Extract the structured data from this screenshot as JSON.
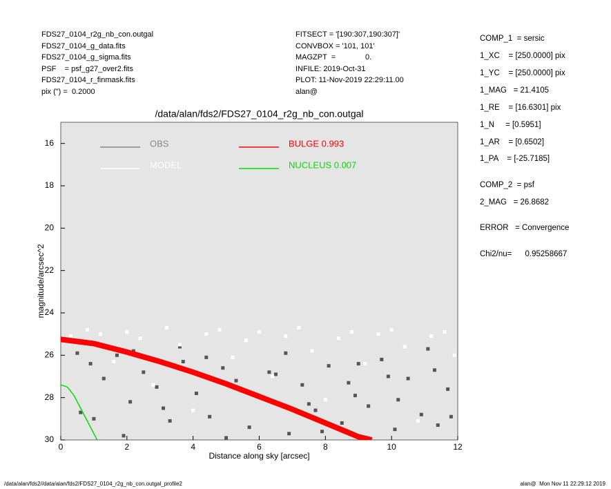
{
  "header_left": [
    "FDS27_0104_r2g_nb_con.outgal",
    "FDS27_0104_g_data.fits",
    "FDS27_0104_g_sigma.fits",
    "PSF    = psf_g27_over2.fits",
    "FDS27_0104_r_finmask.fits",
    "pix (\") =  0.2000"
  ],
  "header_middle": [
    "FITSECT = '[190:307,190:307]'",
    "CONVBOX = '101, 101'",
    "MAGZPT  =              0.",
    "INFILE: 2019-Oct-31",
    "PLOT: 11-Nov-2019 22:29:11.00",
    "alan@"
  ],
  "parameters": [
    "COMP_1  = sersic",
    "1_XC    = [250.0000] pix",
    "1_YC    = [250.0000] pix",
    "1_MAG   = 21.4105",
    "1_RE    = [16.6301] pix",
    "1_N     = [0.5951]",
    "1_AR    = [0.6502]",
    "1_PA    = [-25.7185]",
    "COMP_2  = psf",
    "2_MAG   = 26.8682",
    "ERROR   = Convergence",
    "Chi2/nu=      0.95258667"
  ],
  "footer_left": "/data/alan/fds2//data/alan/fds2/FDS27_0104_r2g_nb_con.outgal_profile2",
  "footer_right": "alan@  Mon Nov 11 22:29:12 2019",
  "chart_data": {
    "type": "scatter",
    "title": "/data/alan/fds2/FDS27_0104_r2g_nb_con.outgal",
    "x_label": "Distance along sky [arcsec]",
    "y_label": "magnitude/arcsec^2",
    "xlim": [
      0,
      12
    ],
    "xticks": [
      0,
      2,
      4,
      6,
      8,
      10,
      12
    ],
    "ylim": [
      30,
      15
    ],
    "yticks": [
      16,
      18,
      20,
      22,
      24,
      26,
      28,
      30
    ],
    "background": "#e5e5e5",
    "series": [
      {
        "name": "OBS",
        "color": "#555555",
        "kind": "points",
        "x": [
          0.2,
          0.5,
          0.9,
          1.3,
          1.7,
          2.1,
          2.5,
          2.9,
          3.3,
          3.7,
          4.1,
          4.5,
          4.9,
          5.3,
          5.7,
          6.1,
          6.5,
          6.9,
          7.3,
          7.7,
          8.1,
          8.5,
          8.9,
          9.3,
          9.7,
          10.1,
          10.5,
          10.9,
          11.3,
          11.7,
          1.0,
          2.2,
          3.1,
          4.4,
          5.6,
          6.8,
          7.9,
          9.0,
          10.2,
          11.4,
          0.6,
          1.9,
          3.6,
          5.0,
          6.3,
          7.5,
          8.7,
          9.9,
          11.1,
          11.8
        ],
        "values": [
          25.3,
          25.9,
          26.4,
          27.1,
          26.0,
          28.2,
          26.8,
          27.5,
          29.1,
          26.3,
          27.8,
          28.9,
          26.6,
          27.2,
          29.4,
          28.0,
          26.9,
          29.7,
          27.4,
          28.6,
          26.5,
          29.2,
          27.9,
          28.4,
          26.2,
          29.5,
          27.1,
          28.8,
          26.7,
          27.6,
          29.0,
          25.8,
          28.5,
          26.1,
          27.7,
          25.9,
          29.6,
          26.4,
          28.1,
          29.3,
          28.7,
          29.8,
          25.6,
          29.9,
          26.8,
          28.3,
          27.3,
          27.0,
          25.7,
          28.9
        ]
      },
      {
        "name": "MODEL",
        "color": "#ffffff",
        "kind": "points",
        "x": [
          0.3,
          0.8,
          1.2,
          1.6,
          2.0,
          2.4,
          2.8,
          3.2,
          3.6,
          4.0,
          4.4,
          4.8,
          5.2,
          5.6,
          6.0,
          6.4,
          6.8,
          7.2,
          7.6,
          8.0,
          8.4,
          8.8,
          9.2,
          9.6,
          10.0,
          10.4,
          10.8,
          11.2,
          11.6,
          11.9
        ],
        "values": [
          25.1,
          24.8,
          25.0,
          26.3,
          24.9,
          25.2,
          27.4,
          24.7,
          25.5,
          28.6,
          25.0,
          24.8,
          26.1,
          25.3,
          24.9,
          27.0,
          25.1,
          24.7,
          25.8,
          28.1,
          25.2,
          24.9,
          26.4,
          25.0,
          24.8,
          25.6,
          29.1,
          25.1,
          24.9,
          26.0
        ]
      },
      {
        "name": "BULGE  0.993",
        "color": "#ff0000",
        "kind": "line",
        "x": [
          0,
          1,
          2,
          3,
          4,
          5,
          6,
          7,
          8,
          9,
          9.4
        ],
        "values": [
          25.25,
          25.45,
          25.85,
          26.3,
          26.8,
          27.35,
          27.95,
          28.55,
          29.2,
          29.85,
          30
        ]
      },
      {
        "name": "NUCLEUS  0.007",
        "color": "#00dd00",
        "kind": "line",
        "x": [
          0,
          0.2,
          0.4,
          0.6,
          0.8,
          1.0,
          1.1
        ],
        "values": [
          27.4,
          27.5,
          27.9,
          28.5,
          29.1,
          29.7,
          30
        ]
      }
    ]
  }
}
